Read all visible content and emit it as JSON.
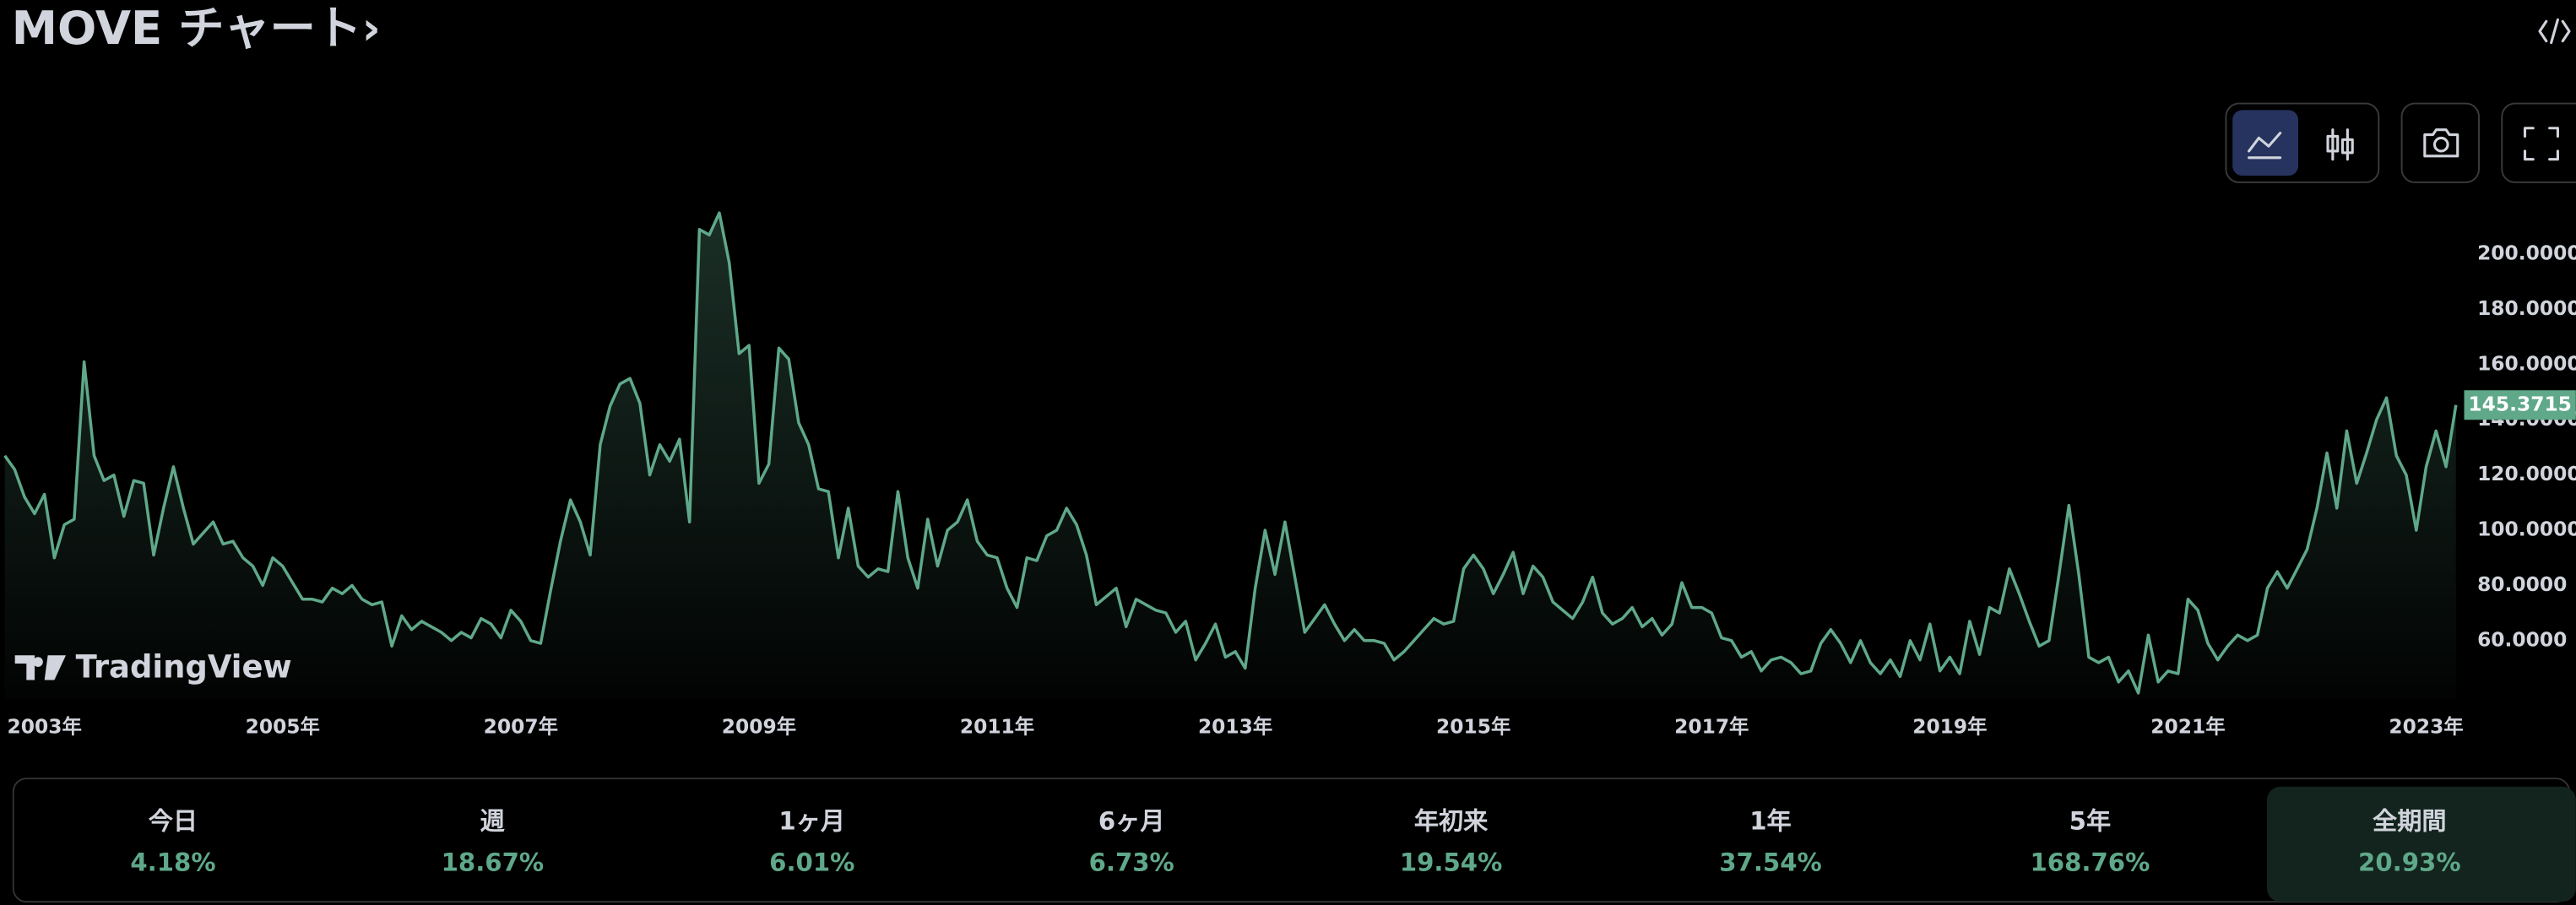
{
  "title": "MOVE チャート›",
  "watermark": "TradingView",
  "chart_data": {
    "type": "area",
    "color": "#5fa88a",
    "grid": false,
    "xlim": [
      2002.628,
      2023.25
    ],
    "ylim": [
      39,
      224
    ],
    "xticks": [
      {
        "value": 2003,
        "label": "2003年"
      },
      {
        "value": 2005,
        "label": "2005年"
      },
      {
        "value": 2007,
        "label": "2007年"
      },
      {
        "value": 2009,
        "label": "2009年"
      },
      {
        "value": 2011,
        "label": "2011年"
      },
      {
        "value": 2013,
        "label": "2013年"
      },
      {
        "value": 2015,
        "label": "2015年"
      },
      {
        "value": 2017,
        "label": "2017年"
      },
      {
        "value": 2019,
        "label": "2019年"
      },
      {
        "value": 2021,
        "label": "2021年"
      },
      {
        "value": 2023,
        "label": "2023年"
      }
    ],
    "yticks": [
      {
        "value": 60,
        "label": "60.0000"
      },
      {
        "value": 80,
        "label": "80.0000"
      },
      {
        "value": 100,
        "label": "100.0000"
      },
      {
        "value": 120,
        "label": "120.0000"
      },
      {
        "value": 140,
        "label": "140.0000"
      },
      {
        "value": 160,
        "label": "160.0000"
      },
      {
        "value": 180,
        "label": "180.0000"
      },
      {
        "value": 200,
        "label": "200.0000"
      }
    ],
    "x": [
      2002.667,
      2002.75,
      2002.833,
      2002.917,
      2003,
      2003.083,
      2003.167,
      2003.25,
      2003.333,
      2003.417,
      2003.5,
      2003.583,
      2003.667,
      2003.75,
      2003.833,
      2003.917,
      2004,
      2004.083,
      2004.167,
      2004.25,
      2004.333,
      2004.417,
      2004.5,
      2004.583,
      2004.667,
      2004.75,
      2004.833,
      2004.917,
      2005,
      2005.083,
      2005.167,
      2005.25,
      2005.333,
      2005.417,
      2005.5,
      2005.583,
      2005.667,
      2005.75,
      2005.833,
      2005.917,
      2006,
      2006.083,
      2006.167,
      2006.25,
      2006.333,
      2006.417,
      2006.5,
      2006.583,
      2006.667,
      2006.75,
      2006.833,
      2006.917,
      2007,
      2007.083,
      2007.167,
      2007.25,
      2007.333,
      2007.417,
      2007.5,
      2007.583,
      2007.667,
      2007.75,
      2007.833,
      2007.917,
      2008,
      2008.083,
      2008.167,
      2008.25,
      2008.333,
      2008.417,
      2008.5,
      2008.583,
      2008.667,
      2008.75,
      2008.833,
      2008.917,
      2009,
      2009.083,
      2009.167,
      2009.25,
      2009.333,
      2009.417,
      2009.5,
      2009.583,
      2009.667,
      2009.75,
      2009.833,
      2009.917,
      2010,
      2010.083,
      2010.167,
      2010.25,
      2010.333,
      2010.417,
      2010.5,
      2010.583,
      2010.667,
      2010.75,
      2010.833,
      2010.917,
      2011,
      2011.083,
      2011.167,
      2011.25,
      2011.333,
      2011.417,
      2011.5,
      2011.583,
      2011.667,
      2011.75,
      2011.833,
      2011.917,
      2012,
      2012.083,
      2012.167,
      2012.25,
      2012.333,
      2012.417,
      2012.5,
      2012.583,
      2012.667,
      2012.75,
      2012.833,
      2012.917,
      2013,
      2013.083,
      2013.167,
      2013.25,
      2013.333,
      2013.417,
      2013.5,
      2013.583,
      2013.667,
      2013.75,
      2013.833,
      2013.917,
      2014,
      2014.083,
      2014.167,
      2014.25,
      2014.333,
      2014.417,
      2014.5,
      2014.583,
      2014.667,
      2014.75,
      2014.833,
      2014.917,
      2015,
      2015.083,
      2015.167,
      2015.25,
      2015.333,
      2015.417,
      2015.5,
      2015.583,
      2015.667,
      2015.75,
      2015.833,
      2015.917,
      2016,
      2016.083,
      2016.167,
      2016.25,
      2016.333,
      2016.417,
      2016.5,
      2016.583,
      2016.667,
      2016.75,
      2016.833,
      2016.917,
      2017,
      2017.083,
      2017.167,
      2017.25,
      2017.333,
      2017.417,
      2017.5,
      2017.583,
      2017.667,
      2017.75,
      2017.833,
      2017.917,
      2018,
      2018.083,
      2018.167,
      2018.25,
      2018.333,
      2018.417,
      2018.5,
      2018.583,
      2018.667,
      2018.75,
      2018.833,
      2018.917,
      2019,
      2019.083,
      2019.167,
      2019.25,
      2019.333,
      2019.417,
      2019.5,
      2019.583,
      2019.667,
      2019.75,
      2019.833,
      2019.917,
      2020,
      2020.083,
      2020.167,
      2020.25,
      2020.333,
      2020.417,
      2020.5,
      2020.583,
      2020.667,
      2020.75,
      2020.833,
      2020.917,
      2021,
      2021.083,
      2021.167,
      2021.25,
      2021.333,
      2021.417,
      2021.5,
      2021.583,
      2021.667,
      2021.75,
      2021.833,
      2021.917,
      2022,
      2022.083,
      2022.167,
      2022.25,
      2022.333,
      2022.417,
      2022.5,
      2022.583,
      2022.667,
      2022.75,
      2022.833,
      2022.917,
      2023,
      2023.083,
      2023.167,
      2023.25
    ],
    "values": [
      127,
      122,
      112,
      106,
      113,
      90,
      102,
      104,
      161,
      127,
      118,
      120,
      105,
      118,
      117,
      91,
      108,
      123,
      108,
      95,
      99,
      103,
      95,
      96,
      90,
      87,
      80,
      90,
      87,
      81,
      75,
      75,
      74,
      79,
      77,
      80,
      75,
      73,
      74,
      58,
      69,
      64,
      67,
      65,
      63,
      60,
      63,
      61,
      68,
      66,
      61,
      71,
      67,
      60,
      59,
      78,
      96,
      111,
      103,
      91,
      131,
      145,
      153,
      155,
      146,
      120,
      131,
      125,
      133,
      103,
      209,
      207,
      215,
      197,
      164,
      167,
      117,
      124,
      166,
      162,
      139,
      131,
      115,
      114,
      90,
      108,
      87,
      83,
      86,
      85,
      114,
      90,
      79,
      104,
      87,
      100,
      103,
      111,
      96,
      91,
      90,
      79,
      72,
      90,
      89,
      98,
      100,
      108,
      102,
      91,
      73,
      76,
      79,
      65,
      75,
      73,
      71,
      70,
      63,
      67,
      53,
      59,
      66,
      54,
      56,
      50,
      79,
      100,
      84,
      103,
      83,
      63,
      68,
      73,
      66,
      60,
      64,
      60,
      60,
      59,
      53,
      56,
      60,
      64,
      68,
      66,
      67,
      86,
      91,
      86,
      77,
      84,
      92,
      77,
      87,
      83,
      74,
      71,
      68,
      74,
      83,
      70,
      66,
      68,
      72,
      65,
      68,
      62,
      66,
      81,
      72,
      72,
      70,
      61,
      60,
      54,
      56,
      49,
      53,
      54,
      52,
      48,
      49,
      59,
      64,
      59,
      52,
      60,
      52,
      48,
      53,
      47,
      60,
      53,
      66,
      49,
      54,
      48,
      67,
      55,
      72,
      70,
      86,
      77,
      67,
      58,
      60,
      84,
      109,
      84,
      54,
      52,
      54,
      45,
      49,
      41,
      62,
      45,
      49,
      48,
      75,
      71,
      59,
      53,
      58,
      62,
      60,
      62,
      79,
      85,
      79,
      86,
      93,
      108,
      128,
      108,
      136,
      117,
      128,
      140,
      148,
      127,
      120,
      100,
      123,
      136,
      123,
      145.3715
    ]
  },
  "periods": [
    {
      "label": "今日",
      "change": "4.18%"
    },
    {
      "label": "週",
      "change": "18.67%"
    },
    {
      "label": "1ヶ月",
      "change": "6.01%"
    },
    {
      "label": "6ヶ月",
      "change": "6.73%"
    },
    {
      "label": "年初来",
      "change": "19.54%"
    },
    {
      "label": "1年",
      "change": "37.54%"
    },
    {
      "label": "5年",
      "change": "168.76%"
    },
    {
      "label": "全期間",
      "change": "20.93%",
      "selected": true
    }
  ]
}
